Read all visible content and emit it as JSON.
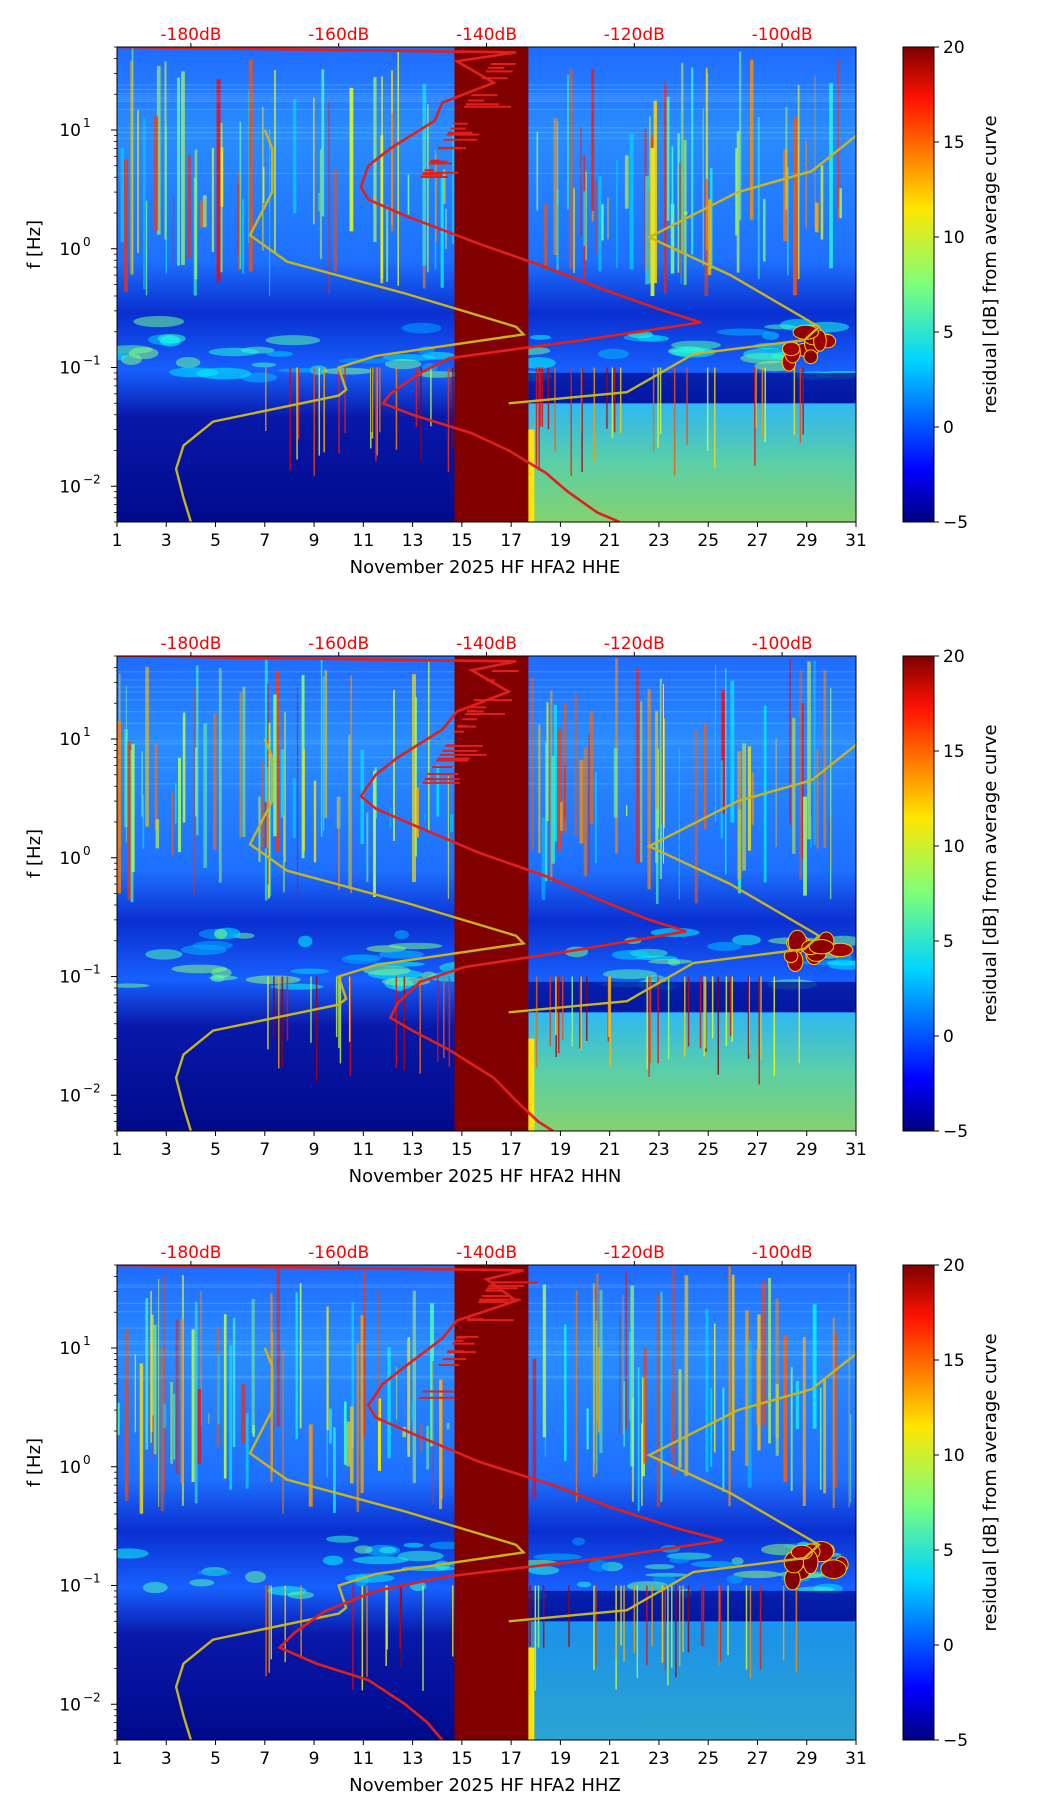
{
  "figure": {
    "colorbar": {
      "label": "residual [dB] from average curve",
      "ticks": [
        "20",
        "15",
        "10",
        "5",
        "0",
        "−5"
      ],
      "min": -5,
      "max": 20
    },
    "top_axis_ticks": [
      "-180dB",
      "-160dB",
      "-140dB",
      "-120dB",
      "-100dB"
    ],
    "y_axis_label": "f [Hz]",
    "y_tick_labels": [
      "10",
      "10",
      "10",
      "10"
    ],
    "y_tick_exponents": [
      "1",
      "0",
      "−1",
      "−2"
    ],
    "x_tick_labels": [
      "1",
      "3",
      "5",
      "7",
      "9",
      "11",
      "13",
      "15",
      "17",
      "19",
      "21",
      "23",
      "25",
      "27",
      "29",
      "31"
    ],
    "colors": {
      "top_axis_text": "#ff0000",
      "psd_curve": "#e0201c",
      "noise_model": "#c8b41e",
      "gap_fill": "#800000"
    }
  },
  "chart_data": [
    {
      "type": "heatmap",
      "xlabel": "November 2025 HF HFA2  HHE",
      "ylabel": "f [Hz]",
      "x_range": [
        1,
        31
      ],
      "y_range_hz": [
        0.005,
        50
      ],
      "y_scale": "log",
      "data_gap_days": [
        14.7,
        17.7
      ],
      "colorbar_range_db": [
        -5,
        20
      ],
      "top_axis_db_range": [
        -190,
        -90
      ],
      "psd_curve": {
        "note_series": "red",
        "points": [
          [
            -190,
            50
          ],
          [
            -136,
            45
          ],
          [
            -144,
            38
          ],
          [
            -139,
            25
          ],
          [
            -146,
            17
          ],
          [
            -147,
            12
          ],
          [
            -153,
            7
          ],
          [
            -156,
            5
          ],
          [
            -157,
            3.3
          ],
          [
            -156,
            2.6
          ],
          [
            -151,
            1.9
          ],
          [
            -141,
            1.1
          ],
          [
            -132,
            0.7
          ],
          [
            -124,
            0.45
          ],
          [
            -116,
            0.3
          ],
          [
            -111,
            0.24
          ],
          [
            -127,
            0.17
          ],
          [
            -145,
            0.12
          ],
          [
            -149,
            0.09
          ],
          [
            -153,
            0.06
          ],
          [
            -154,
            0.05
          ],
          [
            -150,
            0.04
          ],
          [
            -142,
            0.028
          ],
          [
            -137,
            0.02
          ],
          [
            -132,
            0.013
          ],
          [
            -129,
            0.009
          ],
          [
            -125,
            0.006
          ],
          [
            -122,
            0.005
          ]
        ]
      },
      "noise_model_curve": {
        "note_series": "yellow",
        "points": [
          [
            -180,
            0.005
          ],
          [
            -181,
            0.008
          ],
          [
            -182,
            0.014
          ],
          [
            -181,
            0.022
          ],
          [
            -177,
            0.035
          ],
          [
            -160,
            0.058
          ],
          [
            -159,
            0.065
          ],
          [
            -160,
            0.1
          ],
          [
            -155,
            0.125
          ],
          [
            -135,
            0.19
          ],
          [
            -136,
            0.22
          ],
          [
            -151,
            0.42
          ],
          [
            -167,
            0.78
          ],
          [
            -172,
            1.3
          ],
          [
            -169,
            3
          ],
          [
            -169,
            7
          ],
          [
            -170,
            10
          ],
          [
            -137,
            0.05
          ],
          [
            -121,
            0.062
          ],
          [
            -112,
            0.13
          ],
          [
            -97,
            0.17
          ],
          [
            -95,
            0.22
          ],
          [
            -107,
            0.6
          ],
          [
            -118,
            1.25
          ],
          [
            -106,
            3
          ],
          [
            -96,
            4.5
          ],
          [
            -89,
            10
          ]
        ]
      }
    },
    {
      "type": "heatmap",
      "xlabel": "November 2025 HF HFA2  HHN",
      "ylabel": "f [Hz]",
      "x_range": [
        1,
        31
      ],
      "y_range_hz": [
        0.005,
        50
      ],
      "y_scale": "log",
      "data_gap_days": [
        14.7,
        17.7
      ],
      "colorbar_range_db": [
        -5,
        20
      ],
      "top_axis_db_range": [
        -190,
        -90
      ],
      "psd_curve": {
        "points": [
          [
            -190,
            50
          ],
          [
            -136,
            45
          ],
          [
            -142,
            38
          ],
          [
            -137,
            25
          ],
          [
            -144,
            17
          ],
          [
            -146,
            12
          ],
          [
            -152,
            7
          ],
          [
            -155,
            5
          ],
          [
            -157,
            3.3
          ],
          [
            -155,
            2.6
          ],
          [
            -150,
            1.9
          ],
          [
            -141,
            1.1
          ],
          [
            -132,
            0.7
          ],
          [
            -125,
            0.45
          ],
          [
            -118,
            0.3
          ],
          [
            -113,
            0.24
          ],
          [
            -127,
            0.17
          ],
          [
            -143,
            0.12
          ],
          [
            -149,
            0.09
          ],
          [
            -152,
            0.06
          ],
          [
            -153,
            0.045
          ],
          [
            -150,
            0.035
          ],
          [
            -145,
            0.024
          ],
          [
            -139,
            0.014
          ],
          [
            -136,
            0.009
          ],
          [
            -133,
            0.006
          ],
          [
            -131,
            0.005
          ]
        ]
      },
      "noise_model_curve": {
        "points": [
          [
            -180,
            0.005
          ],
          [
            -181,
            0.008
          ],
          [
            -182,
            0.014
          ],
          [
            -181,
            0.022
          ],
          [
            -177,
            0.035
          ],
          [
            -160,
            0.058
          ],
          [
            -159,
            0.065
          ],
          [
            -160,
            0.1
          ],
          [
            -155,
            0.125
          ],
          [
            -135,
            0.19
          ],
          [
            -136,
            0.22
          ],
          [
            -151,
            0.42
          ],
          [
            -167,
            0.78
          ],
          [
            -172,
            1.3
          ],
          [
            -169,
            3
          ],
          [
            -169,
            7
          ],
          [
            -170,
            10
          ],
          [
            -137,
            0.05
          ],
          [
            -121,
            0.062
          ],
          [
            -112,
            0.13
          ],
          [
            -97,
            0.17
          ],
          [
            -95,
            0.22
          ],
          [
            -107,
            0.6
          ],
          [
            -118,
            1.25
          ],
          [
            -106,
            3
          ],
          [
            -96,
            4.5
          ],
          [
            -89,
            10
          ]
        ]
      }
    },
    {
      "type": "heatmap",
      "xlabel": "November 2025 HF HFA2  HHZ",
      "ylabel": "f [Hz]",
      "x_range": [
        1,
        31
      ],
      "y_range_hz": [
        0.005,
        50
      ],
      "y_scale": "log",
      "data_gap_days": [
        14.7,
        17.7
      ],
      "colorbar_range_db": [
        -5,
        20
      ],
      "top_axis_db_range": [
        -190,
        -90
      ],
      "psd_curve": {
        "points": [
          [
            -190,
            50
          ],
          [
            -135,
            45
          ],
          [
            -140,
            38
          ],
          [
            -136,
            25
          ],
          [
            -144,
            17
          ],
          [
            -146,
            12
          ],
          [
            -151,
            7
          ],
          [
            -154,
            5
          ],
          [
            -156,
            3.3
          ],
          [
            -155,
            2.6
          ],
          [
            -150,
            1.9
          ],
          [
            -141,
            1.1
          ],
          [
            -131,
            0.7
          ],
          [
            -123,
            0.45
          ],
          [
            -114,
            0.3
          ],
          [
            -108,
            0.24
          ],
          [
            -124,
            0.17
          ],
          [
            -145,
            0.12
          ],
          [
            -155,
            0.09
          ],
          [
            -162,
            0.06
          ],
          [
            -166,
            0.04
          ],
          [
            -168,
            0.03
          ],
          [
            -163,
            0.022
          ],
          [
            -156,
            0.016
          ],
          [
            -151,
            0.01
          ],
          [
            -148,
            0.007
          ],
          [
            -146,
            0.005
          ]
        ]
      },
      "noise_model_curve": {
        "points": [
          [
            -180,
            0.005
          ],
          [
            -181,
            0.008
          ],
          [
            -182,
            0.014
          ],
          [
            -181,
            0.022
          ],
          [
            -177,
            0.035
          ],
          [
            -160,
            0.058
          ],
          [
            -159,
            0.065
          ],
          [
            -160,
            0.1
          ],
          [
            -155,
            0.125
          ],
          [
            -135,
            0.19
          ],
          [
            -136,
            0.22
          ],
          [
            -151,
            0.42
          ],
          [
            -167,
            0.78
          ],
          [
            -172,
            1.3
          ],
          [
            -169,
            3
          ],
          [
            -169,
            7
          ],
          [
            -170,
            10
          ],
          [
            -137,
            0.05
          ],
          [
            -121,
            0.062
          ],
          [
            -112,
            0.13
          ],
          [
            -97,
            0.17
          ],
          [
            -95,
            0.22
          ],
          [
            -107,
            0.6
          ],
          [
            -118,
            1.25
          ],
          [
            -106,
            3
          ],
          [
            -96,
            4.5
          ],
          [
            -89,
            10
          ]
        ]
      }
    }
  ]
}
